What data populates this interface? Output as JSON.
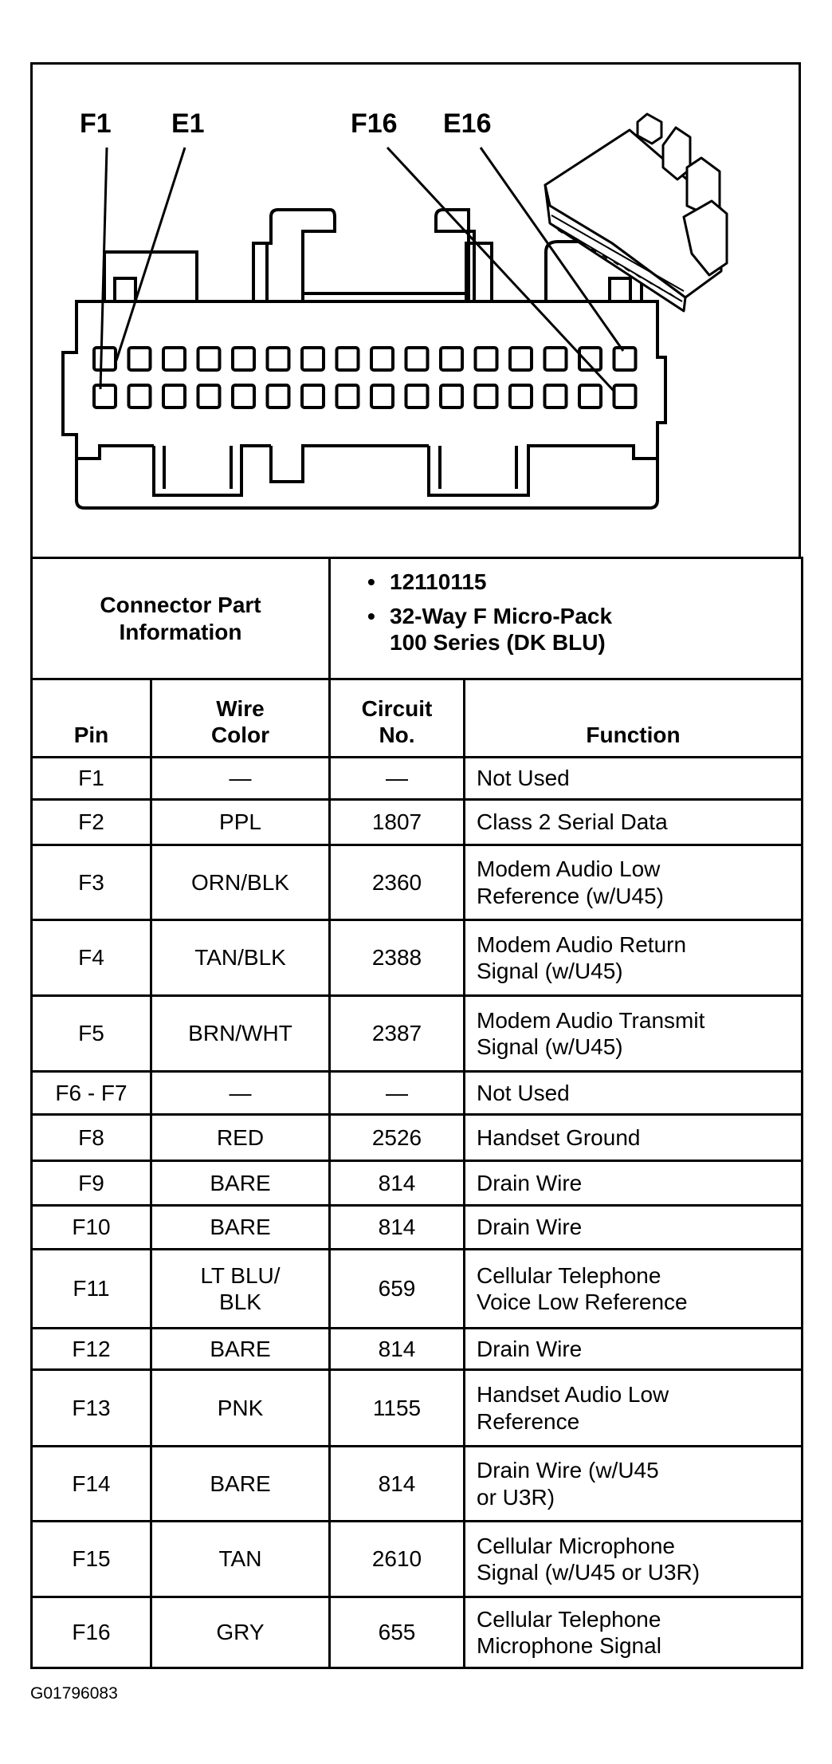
{
  "diagram": {
    "labels": {
      "f1": "F1",
      "e1": "E1",
      "f16": "F16",
      "e16": "E16"
    },
    "pin_rows": 2,
    "pins_per_row": 16
  },
  "connector_info": {
    "label": "Connector Part\nInformation",
    "items": [
      "12110115",
      "32-Way F Micro-Pack\n100 Series (DK BLU)"
    ]
  },
  "table": {
    "headers": {
      "pin": "Pin",
      "wire_color": "Wire\nColor",
      "circuit": "Circuit\nNo.",
      "function": "Function"
    },
    "rows": [
      {
        "pin": "F1",
        "wire_color": "—",
        "circuit": "—",
        "function": "Not Used"
      },
      {
        "pin": "F2",
        "wire_color": "PPL",
        "circuit": "1807",
        "function": "Class 2 Serial Data"
      },
      {
        "pin": "F3",
        "wire_color": "ORN/BLK",
        "circuit": "2360",
        "function": "Modem Audio Low\nReference (w/U45)"
      },
      {
        "pin": "F4",
        "wire_color": "TAN/BLK",
        "circuit": "2388",
        "function": "Modem Audio Return\nSignal (w/U45)"
      },
      {
        "pin": "F5",
        "wire_color": "BRN/WHT",
        "circuit": "2387",
        "function": "Modem Audio Transmit\nSignal (w/U45)"
      },
      {
        "pin": "F6 - F7",
        "wire_color": "—",
        "circuit": "—",
        "function": "Not Used"
      },
      {
        "pin": "F8",
        "wire_color": "RED",
        "circuit": "2526",
        "function": "Handset Ground"
      },
      {
        "pin": "F9",
        "wire_color": "BARE",
        "circuit": "814",
        "function": "Drain Wire"
      },
      {
        "pin": "F10",
        "wire_color": "BARE",
        "circuit": "814",
        "function": "Drain Wire"
      },
      {
        "pin": "F11",
        "wire_color": "LT BLU/\nBLK",
        "circuit": "659",
        "function": "Cellular Telephone\nVoice Low Reference"
      },
      {
        "pin": "F12",
        "wire_color": "BARE",
        "circuit": "814",
        "function": "Drain Wire"
      },
      {
        "pin": "F13",
        "wire_color": "PNK",
        "circuit": "1155",
        "function": "Handset Audio Low\nReference"
      },
      {
        "pin": "F14",
        "wire_color": "BARE",
        "circuit": "814",
        "function": "Drain Wire (w/U45\nor U3R)"
      },
      {
        "pin": "F15",
        "wire_color": "TAN",
        "circuit": "2610",
        "function": "Cellular Microphone\nSignal (w/U45 or U3R)"
      },
      {
        "pin": "F16",
        "wire_color": "GRY",
        "circuit": "655",
        "function": "Cellular Telephone\nMicrophone Signal"
      }
    ]
  },
  "footer": {
    "code": "G01796083"
  }
}
